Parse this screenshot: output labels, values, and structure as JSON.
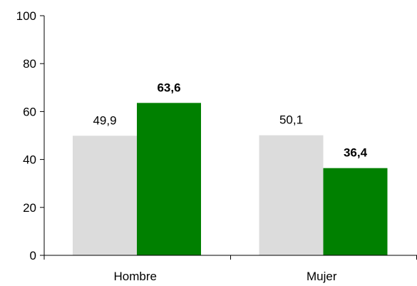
{
  "chart_data": {
    "type": "bar",
    "categories": [
      "Hombre",
      "Mujer"
    ],
    "series": [
      {
        "values": [
          49.9,
          50.1
        ],
        "labels": [
          "49,9",
          "50,1"
        ],
        "color": "#dcdcdc",
        "label_bold": false
      },
      {
        "values": [
          63.6,
          36.4
        ],
        "labels": [
          "63,6",
          "36,4"
        ],
        "color": "#008000",
        "label_bold": true
      }
    ],
    "ylim": [
      0,
      100
    ],
    "yticks": [
      0,
      20,
      40,
      60,
      80,
      100
    ],
    "ytick_labels": [
      "0",
      "20",
      "40",
      "60",
      "80",
      "100"
    ],
    "grid": false,
    "legend": "none"
  }
}
